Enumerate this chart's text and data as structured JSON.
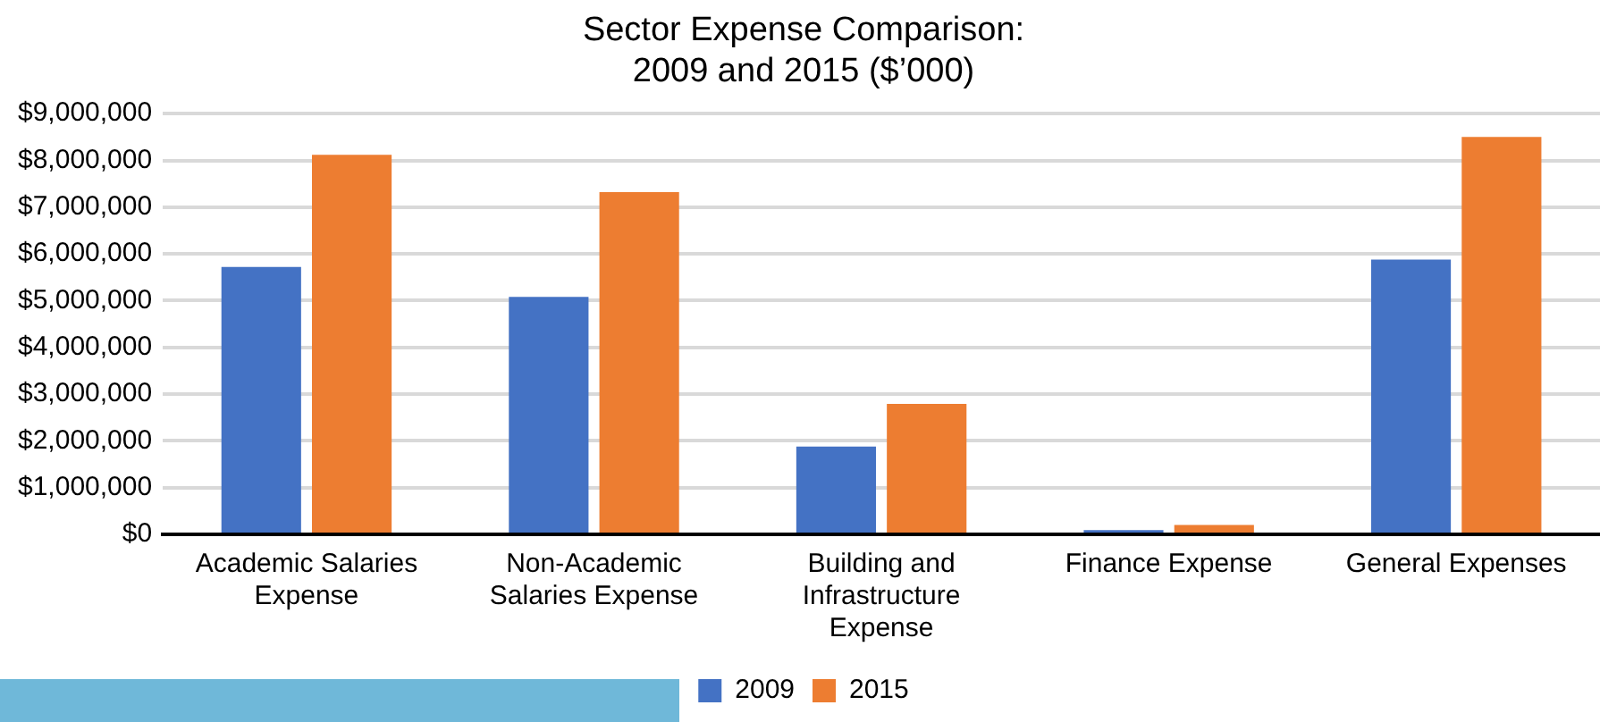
{
  "chart_data": {
    "type": "bar",
    "title": "Sector Expense Comparison: 2009 and 2015 ($’000)",
    "categories": [
      "Academic Salaries Expense",
      "Non-Academic Salaries Expense",
      "Building and Infrastructure Expense",
      "Finance Expense",
      "General Expenses"
    ],
    "series": [
      {
        "name": "2009",
        "color": "#4472c4",
        "values": [
          5720000,
          5080000,
          1880000,
          90000,
          5880000
        ]
      },
      {
        "name": "2015",
        "color": "#ed7d31",
        "values": [
          8120000,
          7320000,
          2790000,
          200000,
          8500000
        ]
      }
    ],
    "ylim": [
      0,
      9000000
    ],
    "yticks": [
      {
        "value": 0,
        "label": "$0"
      },
      {
        "value": 1000000,
        "label": "$1,000,000"
      },
      {
        "value": 2000000,
        "label": "$2,000,000"
      },
      {
        "value": 3000000,
        "label": "$3,000,000"
      },
      {
        "value": 4000000,
        "label": "$4,000,000"
      },
      {
        "value": 5000000,
        "label": "$5,000,000"
      },
      {
        "value": 6000000,
        "label": "$6,000,000"
      },
      {
        "value": 7000000,
        "label": "$7,000,000"
      },
      {
        "value": 8000000,
        "label": "$8,000,000"
      },
      {
        "value": 9000000,
        "label": "$9,000,000"
      }
    ],
    "grid": "y",
    "legend": "bottom"
  }
}
